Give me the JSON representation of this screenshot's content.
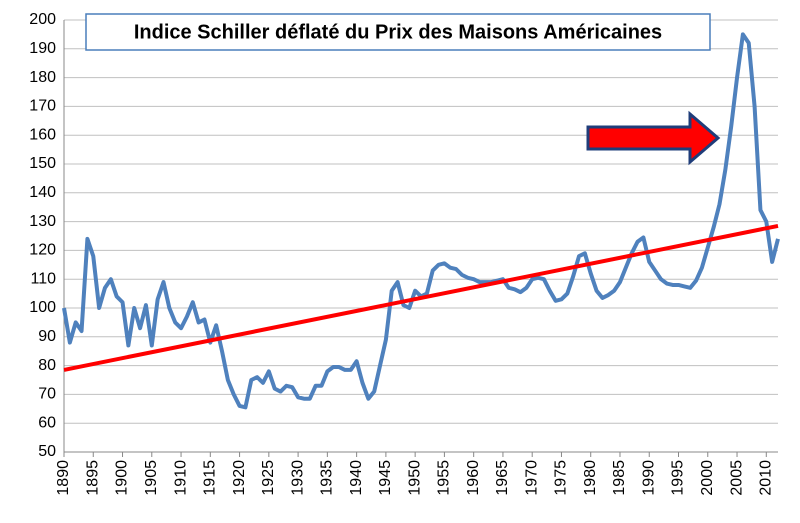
{
  "chart_data": {
    "type": "line",
    "title": "Indice Schiller déflaté du Prix des Maisons Américaines",
    "x": [
      1890,
      1891,
      1892,
      1893,
      1894,
      1895,
      1896,
      1897,
      1898,
      1899,
      1900,
      1901,
      1902,
      1903,
      1904,
      1905,
      1906,
      1907,
      1908,
      1909,
      1910,
      1911,
      1912,
      1913,
      1914,
      1915,
      1916,
      1917,
      1918,
      1919,
      1920,
      1921,
      1922,
      1923,
      1924,
      1925,
      1926,
      1927,
      1928,
      1929,
      1930,
      1931,
      1932,
      1933,
      1934,
      1935,
      1936,
      1937,
      1938,
      1939,
      1940,
      1941,
      1942,
      1943,
      1944,
      1945,
      1946,
      1947,
      1948,
      1949,
      1950,
      1951,
      1952,
      1953,
      1954,
      1955,
      1956,
      1957,
      1958,
      1959,
      1960,
      1961,
      1962,
      1963,
      1964,
      1965,
      1966,
      1967,
      1968,
      1969,
      1970,
      1971,
      1972,
      1973,
      1974,
      1975,
      1976,
      1977,
      1978,
      1979,
      1980,
      1981,
      1982,
      1983,
      1984,
      1985,
      1986,
      1987,
      1988,
      1989,
      1990,
      1991,
      1992,
      1993,
      1994,
      1995,
      1996,
      1997,
      1998,
      1999,
      2000,
      2001,
      2002,
      2003,
      2004,
      2005,
      2006,
      2007,
      2008,
      2009,
      2010,
      2011,
      2012
    ],
    "series": [
      {
        "color": "#4f81bd",
        "values": [
          100,
          88,
          95,
          92,
          124,
          118,
          100,
          107,
          110,
          104,
          102,
          87,
          100,
          93,
          101,
          87,
          103,
          109,
          100,
          95,
          93,
          97,
          102,
          95,
          96,
          88,
          94,
          85,
          75,
          70,
          66,
          65.5,
          75,
          76,
          74,
          78,
          72,
          71,
          73,
          72.5,
          69,
          68.5,
          68.5,
          73,
          73,
          78,
          79.5,
          79.5,
          78.5,
          78.5,
          81.5,
          74,
          68.5,
          71,
          80,
          89,
          106,
          109,
          101,
          100,
          106,
          104,
          105,
          113,
          115,
          115.5,
          114,
          113.5,
          111.5,
          110.5,
          110,
          109,
          109,
          109,
          109.5,
          110,
          107,
          106.5,
          105.5,
          107,
          110,
          110.5,
          110,
          106,
          102.5,
          103,
          105,
          111,
          118,
          119,
          112,
          106,
          103.5,
          104.5,
          106,
          109,
          114,
          119,
          123,
          124.5,
          116,
          113,
          110,
          108.5,
          108,
          108,
          107.5,
          107,
          109.5,
          114,
          121,
          128,
          136,
          148,
          163,
          180,
          195,
          192,
          170,
          134,
          130,
          116,
          124
        ]
      },
      {
        "color": "#ff0000",
        "x": [
          1890,
          2012
        ],
        "values": [
          78.5,
          128.5
        ]
      }
    ],
    "xlim": [
      1890,
      2012
    ],
    "xticks": [
      1890,
      1895,
      1900,
      1905,
      1910,
      1915,
      1920,
      1925,
      1930,
      1935,
      1940,
      1945,
      1950,
      1955,
      1960,
      1965,
      1970,
      1975,
      1980,
      1985,
      1990,
      1995,
      2000,
      2005,
      2010
    ],
    "ylim": [
      50,
      200
    ],
    "yticks": [
      50,
      60,
      70,
      80,
      90,
      100,
      110,
      120,
      130,
      140,
      150,
      160,
      170,
      180,
      190,
      200
    ],
    "grid": true
  }
}
